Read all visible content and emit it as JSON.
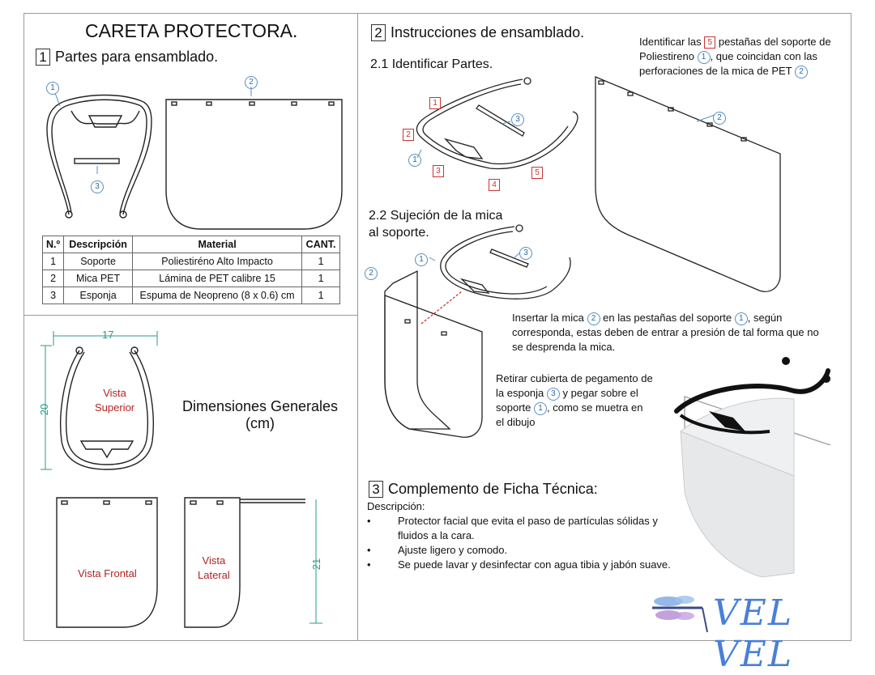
{
  "title": "CARETA PROTECTORA.",
  "section1": {
    "num": "1",
    "heading": "Partes para ensamblado."
  },
  "callouts": {
    "one": "1",
    "two": "2",
    "three": "3",
    "four": "4",
    "five": "5"
  },
  "table": {
    "headers": [
      "N.º",
      "Descripción",
      "Material",
      "CANT."
    ],
    "rows": [
      [
        "1",
        "Soporte",
        "Poliestiréno Alto Impacto",
        "1"
      ],
      [
        "2",
        "Mica PET",
        "Lámina de PET calibre 15",
        "1"
      ],
      [
        "3",
        "Esponja",
        "Espuma de Neopreno (8 x 0.6) cm",
        "1"
      ]
    ]
  },
  "dimensions": {
    "title_line1": "Dimensiones Generales",
    "title_line2": "(cm)",
    "width_top": "17",
    "height_top": "20",
    "height_side": "21",
    "view_top_line1": "Vista",
    "view_top_line2": "Superior",
    "view_front": "Vista Frontal",
    "view_side_line1": "Vista",
    "view_side_line2": "Lateral"
  },
  "section2": {
    "num": "2",
    "heading": "Instrucciones de ensamblado.",
    "step1": "2.1 Identificar Partes.",
    "step2_line1": "2.2 Sujeción de la mica",
    "step2_line2": "al soporte.",
    "note1": {
      "a": "Identificar las",
      "b": "pestañas del soporte de",
      "c": "Poliestireno",
      "d": ", que coincidan con las",
      "e": "perforaciones de la mica de PET"
    },
    "note2": {
      "a": "Insertar la mica",
      "b": "en las pestañas del soporte",
      "c": ", según",
      "d": "corresponda, estas deben de entrar a presión de tal forma que no",
      "e": "se desprenda la mica."
    },
    "note3": {
      "a": "Retirar cubierta de pegamento de",
      "b": "la esponja",
      "c": "y pegar sobre el",
      "d": "soporte",
      "e": ", como se muetra en",
      "f": "el dibujo"
    }
  },
  "section3": {
    "num": "3",
    "heading": "Complemento de Ficha Técnica:",
    "desc_label": "Descripción:",
    "bullets": [
      "Protector facial que evita el paso de partículas sólidas y fluidos a la cara.",
      "Ajuste ligero y comodo.",
      "Se puede lavar y desinfectar con agua tibia y jabón suave."
    ]
  },
  "brand": {
    "name": "VEL VEL",
    "color": "#4a7fd8"
  },
  "colors": {
    "callout": "#2c6aa8",
    "label_red": "#b22222",
    "frame": "#9a9a9a"
  }
}
